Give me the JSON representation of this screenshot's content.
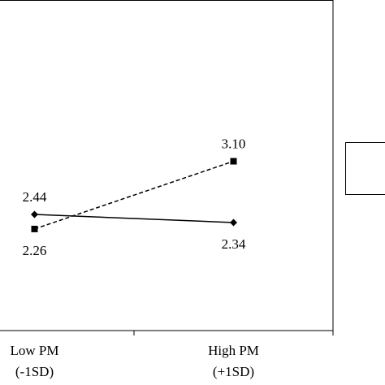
{
  "chart_data": {
    "type": "line",
    "categories": [
      "Low PM\n(-1SD)",
      "High PM\n(+1SD)"
    ],
    "series": [
      {
        "color": "#000000",
        "linestyle": "solid",
        "marker": "diamond",
        "values": [
          2.44,
          2.34
        ],
        "value_labels": [
          "2.44",
          "2.34"
        ]
      },
      {
        "color": "#000000",
        "linestyle": "dashed",
        "marker": "square",
        "values": [
          2.26,
          3.1
        ],
        "value_labels": [
          "2.26",
          "3.10"
        ]
      }
    ],
    "ylim": [
      1,
      5.1
    ]
  }
}
